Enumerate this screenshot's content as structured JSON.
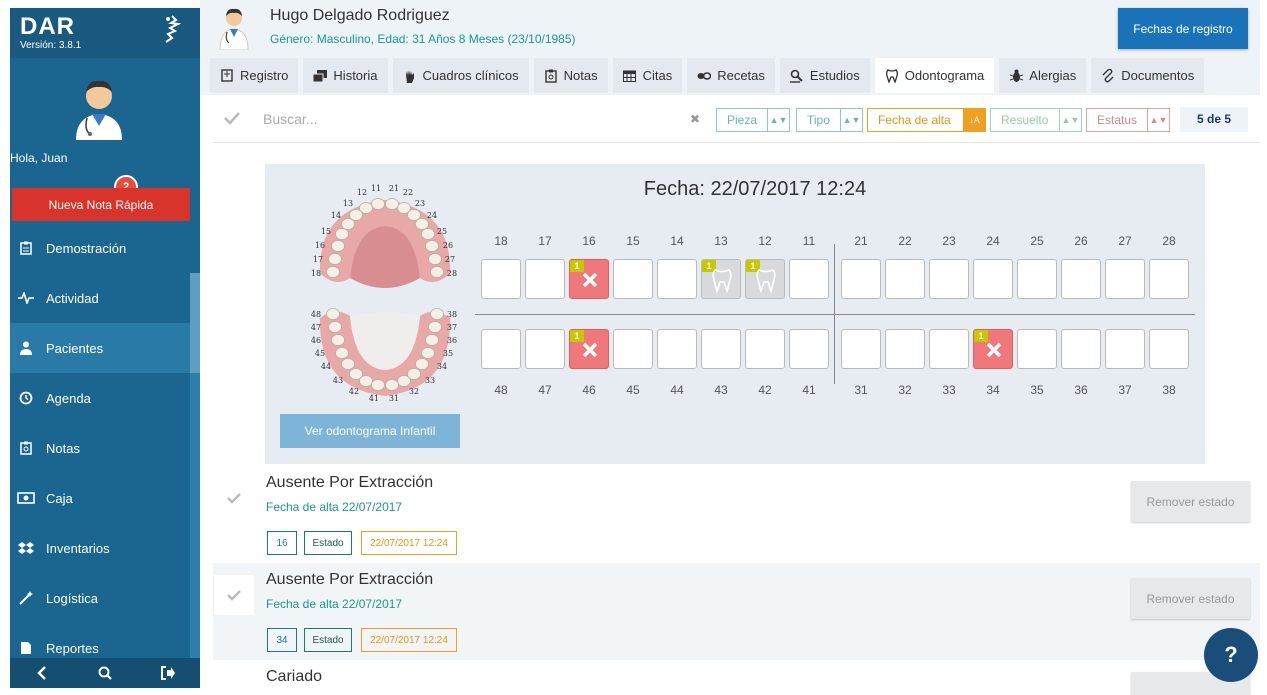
{
  "sidebar": {
    "brand": "DAR",
    "version": "Versión: 3.8.1",
    "greeting": "Hola, Juan",
    "notification_count": "2",
    "quick_note_label": "Nueva Nota Rápida",
    "menu": [
      {
        "label": "Demostración",
        "icon": "clipboard-icon"
      },
      {
        "label": "Actividad",
        "icon": "pulse-icon"
      },
      {
        "label": "Pacientes",
        "icon": "patient-icon"
      },
      {
        "label": "Agenda",
        "icon": "clock-icon"
      },
      {
        "label": "Notas",
        "icon": "notes-icon"
      },
      {
        "label": "Caja",
        "icon": "cash-icon"
      },
      {
        "label": "Inventarios",
        "icon": "dropbox-icon"
      },
      {
        "label": "Logística",
        "icon": "wand-icon"
      },
      {
        "label": "Reportes",
        "icon": "file-icon"
      }
    ]
  },
  "patient": {
    "name": "Hugo Delgado Rodriguez",
    "info": "Género: Masculino, Edad: 31 Años 8 Meses (23/10/1985)"
  },
  "header": {
    "register_dates_label": "Fechas de registro"
  },
  "tabs": [
    {
      "label": "Registro",
      "icon": "register-icon"
    },
    {
      "label": "Historia",
      "icon": "history-icon"
    },
    {
      "label": "Cuadros clínicos",
      "icon": "hand-icon"
    },
    {
      "label": "Notas",
      "icon": "notes-icon"
    },
    {
      "label": "Citas",
      "icon": "calendar-icon"
    },
    {
      "label": "Recetas",
      "icon": "pills-icon"
    },
    {
      "label": "Estudios",
      "icon": "microscope-icon"
    },
    {
      "label": "Odontograma",
      "icon": "tooth-icon"
    },
    {
      "label": "Alergias",
      "icon": "bug-icon"
    },
    {
      "label": "Documentos",
      "icon": "paperclip-icon"
    }
  ],
  "search": {
    "placeholder": "Buscar...",
    "filters": {
      "pieza": "Pieza",
      "tipo": "Tipo",
      "fecha_alta": "Fecha de alta",
      "resuelto": "Resuelto",
      "estatus": "Estatus"
    },
    "count": "5 de 5"
  },
  "odontogram": {
    "date_label": "Fecha: 22/07/2017 12:24",
    "infant_button": "Ver odontograma Infantil",
    "upper_teeth": [
      "18",
      "17",
      "16",
      "15",
      "14",
      "13",
      "12",
      "11",
      "21",
      "22",
      "23",
      "24",
      "25",
      "26",
      "27",
      "28"
    ],
    "lower_teeth": [
      "48",
      "47",
      "46",
      "45",
      "44",
      "43",
      "42",
      "41",
      "31",
      "32",
      "33",
      "34",
      "35",
      "36",
      "37",
      "38"
    ],
    "upper_states": [
      "",
      "",
      "absent",
      "",
      "",
      "caries",
      "caries",
      "",
      "",
      "",
      "",
      "",
      "",
      "",
      "",
      ""
    ],
    "lower_states": [
      "",
      "",
      "absent",
      "",
      "",
      "",
      "",
      "",
      "",
      "",
      "",
      "absent",
      "",
      "",
      "",
      ""
    ],
    "flag_label": "1",
    "mouth_upper_labels": [
      "11",
      "21",
      "12",
      "22",
      "13",
      "23",
      "14",
      "24",
      "15",
      "25",
      "16",
      "26",
      "17",
      "27",
      "18",
      "28"
    ],
    "mouth_lower_labels": [
      "48",
      "38",
      "47",
      "37",
      "46",
      "36",
      "45",
      "35",
      "44",
      "34",
      "43",
      "33",
      "42",
      "32",
      "41",
      "31"
    ]
  },
  "findings": [
    {
      "title": "Ausente Por Extracción",
      "date": "Fecha de alta 22/07/2017",
      "tooth": "16",
      "status": "Estado",
      "timestamp": "22/07/2017 12:24",
      "remove_label": "Remover estado"
    },
    {
      "title": "Ausente Por Extracción",
      "date": "Fecha de alta 22/07/2017",
      "tooth": "34",
      "status": "Estado",
      "timestamp": "22/07/2017 12:24",
      "remove_label": "Remover estado"
    },
    {
      "title": "Cariado",
      "remove_label": ""
    }
  ],
  "help_label": "?"
}
